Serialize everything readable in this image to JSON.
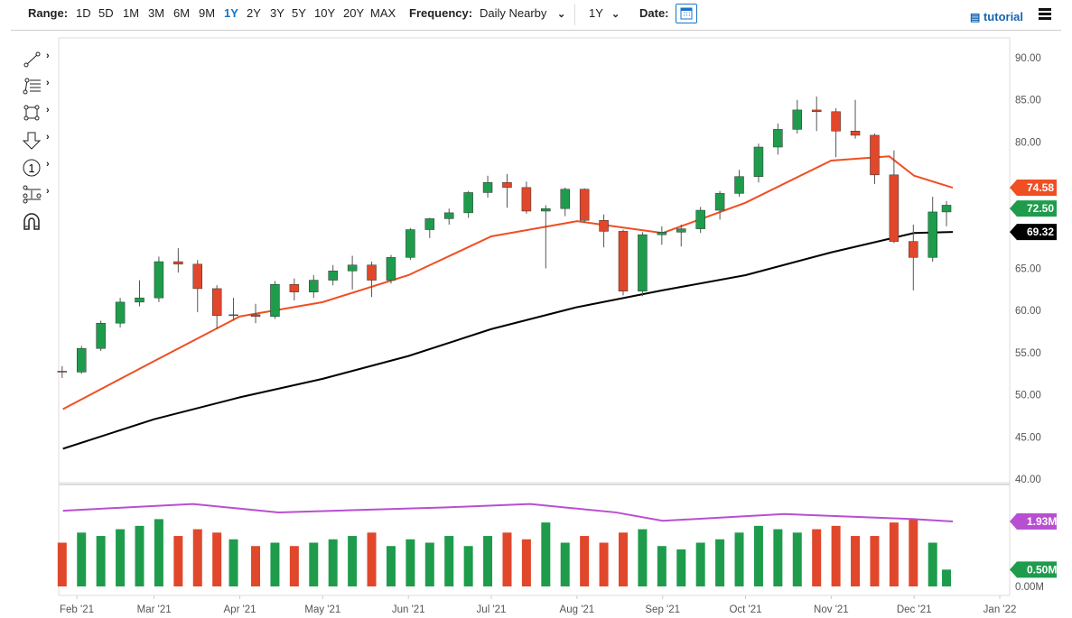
{
  "toolbar": {
    "range_label": "Range:",
    "ranges": [
      "1D",
      "5D",
      "1M",
      "3M",
      "6M",
      "9M",
      "1Y",
      "2Y",
      "3Y",
      "5Y",
      "10Y",
      "20Y",
      "MAX"
    ],
    "active_range": "1Y",
    "frequency_label": "Frequency:",
    "frequency_value": "Daily Nearby",
    "period_value": "1Y",
    "date_label": "Date:",
    "tutorial_label": "tutorial",
    "icons": [
      "calendar-icon",
      "film-icon",
      "hamburger-menu-icon"
    ]
  },
  "drawing_tools": [
    "trend-line-icon",
    "fibonacci-icon",
    "rectangle-icon",
    "arrow-down-icon",
    "numbered-marker-icon",
    "measure-icon",
    "magnet-icon"
  ],
  "chart_data": {
    "type": "candlestick",
    "colors": {
      "up": "#1e9c4c",
      "down": "#e0472b",
      "ma_fast": "#f04e23",
      "ma_slow": "#000000",
      "vol_avg": "#b84fd1"
    },
    "price_axis": {
      "ylim": [
        40,
        90
      ],
      "ticks": [
        "90.00",
        "85.00",
        "80.00",
        "74.58",
        "72.50",
        "69.32",
        "65.00",
        "60.00",
        "55.00",
        "50.00",
        "45.00",
        "40.00"
      ]
    },
    "volume_axis": {
      "ylim_millions": [
        0,
        3.2
      ],
      "ticks": [
        "1.93M",
        "0.50M",
        "0.00M"
      ]
    },
    "x_ticks": [
      [
        "2021-02-01",
        "Feb '21"
      ],
      [
        "2021-03-01",
        "Mar '21"
      ],
      [
        "2021-04-01",
        "Apr '21"
      ],
      [
        "2021-05-01",
        "May '21"
      ],
      [
        "2021-06-01",
        "Jun '21"
      ],
      [
        "2021-07-01",
        "Jul '21"
      ],
      [
        "2021-08-01",
        "Aug '21"
      ],
      [
        "2021-09-01",
        "Sep '21"
      ],
      [
        "2021-10-01",
        "Oct '21"
      ],
      [
        "2021-11-01",
        "Nov '21"
      ],
      [
        "2021-12-01",
        "Dec '21"
      ],
      [
        "2022-01-01",
        "Jan '22"
      ]
    ],
    "x_range": [
      "2021-01-25",
      "2022-01-20"
    ],
    "last_labels": {
      "ma_fast": "74.58",
      "close": "72.50",
      "ma_slow": "69.32",
      "vol_avg": "1.93M",
      "volume": "0.50M"
    },
    "candles": [
      [
        "2021-01-29",
        52.8,
        53.4,
        52.0,
        52.7,
        1.3
      ],
      [
        "2021-02-05",
        52.7,
        55.8,
        52.5,
        55.5,
        1.6
      ],
      [
        "2021-02-12",
        55.5,
        58.8,
        55.2,
        58.5,
        1.5
      ],
      [
        "2021-02-19",
        58.5,
        61.5,
        58.0,
        61.0,
        1.7
      ],
      [
        "2021-02-26",
        61.0,
        63.6,
        60.5,
        61.5,
        1.8
      ],
      [
        "2021-03-05",
        61.5,
        66.4,
        61.0,
        65.8,
        2.0
      ],
      [
        "2021-03-12",
        65.8,
        67.4,
        64.5,
        65.5,
        1.5
      ],
      [
        "2021-03-19",
        65.5,
        66.0,
        59.8,
        62.6,
        1.7
      ],
      [
        "2021-03-26",
        62.6,
        63.0,
        57.8,
        59.4,
        1.6
      ],
      [
        "2021-04-01",
        59.4,
        61.5,
        58.8,
        59.5,
        1.4
      ],
      [
        "2021-04-09",
        59.5,
        60.8,
        58.5,
        59.3,
        1.2
      ],
      [
        "2021-04-16",
        59.3,
        63.5,
        59.0,
        63.1,
        1.3
      ],
      [
        "2021-04-23",
        63.1,
        63.8,
        61.2,
        62.2,
        1.2
      ],
      [
        "2021-04-30",
        62.2,
        64.2,
        61.5,
        63.6,
        1.3
      ],
      [
        "2021-05-07",
        63.6,
        65.4,
        63.0,
        64.7,
        1.4
      ],
      [
        "2021-05-14",
        64.7,
        66.5,
        62.5,
        65.4,
        1.5
      ],
      [
        "2021-05-21",
        65.4,
        65.8,
        61.6,
        63.6,
        1.6
      ],
      [
        "2021-05-28",
        63.6,
        66.6,
        63.2,
        66.3,
        1.2
      ],
      [
        "2021-06-04",
        66.3,
        69.8,
        66.0,
        69.6,
        1.4
      ],
      [
        "2021-06-11",
        69.6,
        71.0,
        68.6,
        70.9,
        1.3
      ],
      [
        "2021-06-18",
        70.9,
        72.1,
        70.2,
        71.6,
        1.5
      ],
      [
        "2021-06-25",
        71.6,
        74.2,
        71.0,
        74.0,
        1.2
      ],
      [
        "2021-07-02",
        74.0,
        76.0,
        73.4,
        75.2,
        1.5
      ],
      [
        "2021-07-09",
        75.2,
        76.2,
        72.2,
        74.6,
        1.6
      ],
      [
        "2021-07-16",
        74.6,
        75.3,
        71.5,
        71.8,
        1.4
      ],
      [
        "2021-07-23",
        71.8,
        72.5,
        65.0,
        72.1,
        1.9
      ],
      [
        "2021-07-30",
        72.1,
        74.6,
        71.2,
        74.4,
        1.3
      ],
      [
        "2021-08-06",
        74.4,
        74.5,
        70.4,
        70.7,
        1.5
      ],
      [
        "2021-08-13",
        70.7,
        71.4,
        67.5,
        69.4,
        1.3
      ],
      [
        "2021-08-20",
        69.4,
        69.6,
        61.8,
        62.3,
        1.6
      ],
      [
        "2021-08-27",
        62.3,
        69.3,
        61.7,
        69.0,
        1.7
      ],
      [
        "2021-09-03",
        69.0,
        70.0,
        67.8,
        69.3,
        1.2
      ],
      [
        "2021-09-10",
        69.3,
        70.2,
        67.6,
        69.7,
        1.1
      ],
      [
        "2021-09-17",
        69.7,
        72.3,
        69.2,
        71.9,
        1.3
      ],
      [
        "2021-09-24",
        71.9,
        74.2,
        70.8,
        73.9,
        1.4
      ],
      [
        "2021-10-01",
        73.9,
        76.7,
        73.5,
        75.9,
        1.6
      ],
      [
        "2021-10-08",
        75.9,
        79.8,
        75.2,
        79.4,
        1.8
      ],
      [
        "2021-10-15",
        79.4,
        82.2,
        78.5,
        81.5,
        1.7
      ],
      [
        "2021-10-22",
        81.5,
        85.0,
        81.0,
        83.8,
        1.6
      ],
      [
        "2021-10-29",
        83.8,
        85.4,
        81.3,
        83.6,
        1.7
      ],
      [
        "2021-11-05",
        83.6,
        84.0,
        78.2,
        81.3,
        1.8
      ],
      [
        "2021-11-12",
        81.3,
        85.0,
        80.4,
        80.8,
        1.5
      ],
      [
        "2021-11-19",
        80.8,
        81.0,
        75.0,
        76.1,
        1.5
      ],
      [
        "2021-11-26",
        76.1,
        79.0,
        68.0,
        68.2,
        1.9
      ],
      [
        "2021-12-03",
        68.2,
        70.2,
        62.4,
        66.3,
        2.0
      ],
      [
        "2021-12-10",
        66.3,
        73.5,
        65.8,
        71.7,
        1.3
      ],
      [
        "2021-12-15",
        71.7,
        73.0,
        70.0,
        72.5,
        0.5
      ]
    ],
    "ma_fast": [
      [
        "2021-01-27",
        48.3
      ],
      [
        "2021-03-01",
        54.0
      ],
      [
        "2021-04-01",
        59.3
      ],
      [
        "2021-05-01",
        61.0
      ],
      [
        "2021-06-01",
        64.2
      ],
      [
        "2021-07-01",
        68.8
      ],
      [
        "2021-08-01",
        70.6
      ],
      [
        "2021-09-01",
        69.2
      ],
      [
        "2021-10-01",
        72.8
      ],
      [
        "2021-11-01",
        77.8
      ],
      [
        "2021-11-22",
        78.3
      ],
      [
        "2021-12-01",
        76.0
      ],
      [
        "2021-12-15",
        74.58
      ]
    ],
    "ma_slow": [
      [
        "2021-01-27",
        43.6
      ],
      [
        "2021-03-01",
        47.1
      ],
      [
        "2021-04-01",
        49.7
      ],
      [
        "2021-05-01",
        51.9
      ],
      [
        "2021-06-01",
        54.6
      ],
      [
        "2021-07-01",
        57.8
      ],
      [
        "2021-08-01",
        60.4
      ],
      [
        "2021-09-01",
        62.4
      ],
      [
        "2021-10-01",
        64.2
      ],
      [
        "2021-11-01",
        66.9
      ],
      [
        "2021-12-01",
        69.2
      ],
      [
        "2021-12-15",
        69.32
      ]
    ],
    "vol_avg": [
      [
        "2021-01-27",
        2.25
      ],
      [
        "2021-03-15",
        2.45
      ],
      [
        "2021-04-15",
        2.2
      ],
      [
        "2021-06-15",
        2.35
      ],
      [
        "2021-07-15",
        2.45
      ],
      [
        "2021-08-15",
        2.2
      ],
      [
        "2021-09-01",
        1.95
      ],
      [
        "2021-10-15",
        2.15
      ],
      [
        "2021-11-15",
        2.05
      ],
      [
        "2021-12-01",
        2.0
      ],
      [
        "2021-12-15",
        1.93
      ]
    ]
  }
}
